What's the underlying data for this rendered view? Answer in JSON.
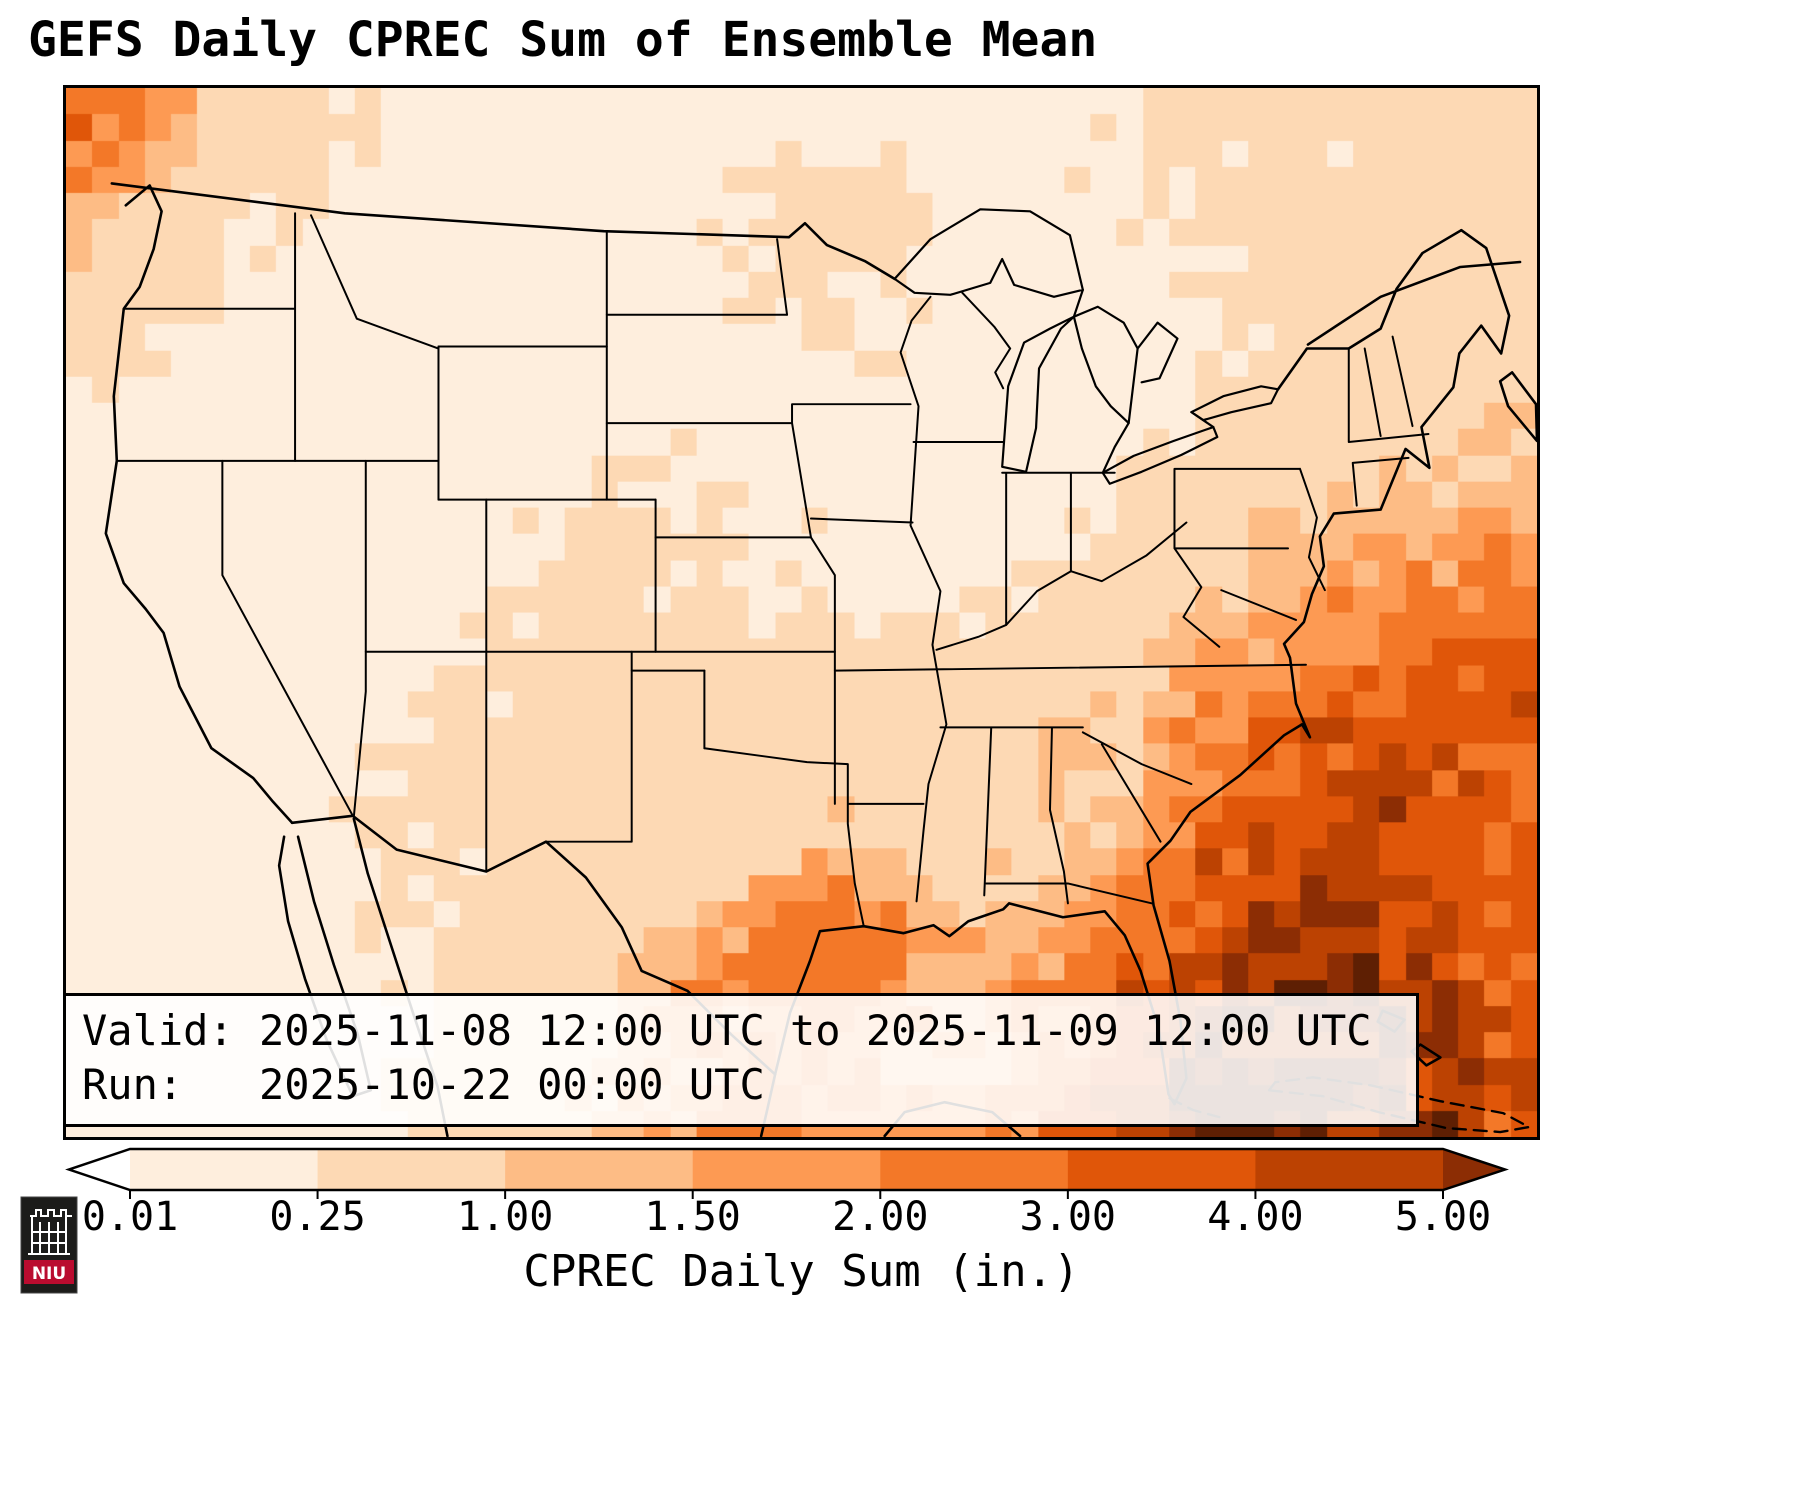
{
  "title": "GEFS Daily CPREC Sum of Ensemble Mean",
  "annotation": {
    "line1": "Valid: 2025-11-08 12:00 UTC to 2025-11-09 12:00 UTC",
    "line2": "Run:   2025-10-22 00:00 UTC"
  },
  "colorbar": {
    "label": "CPREC Daily Sum (in.)",
    "ticks": [
      "0.01",
      "0.25",
      "1.00",
      "1.50",
      "2.00",
      "3.00",
      "4.00",
      "5.00"
    ],
    "under_color": "#ffffff",
    "segment_colors": [
      "#feeedd",
      "#fdd9b4",
      "#fdbc85",
      "#fd9a53",
      "#f37828",
      "#e05609",
      "#bc4202"
    ],
    "over_color": "#8c2d04",
    "extreme_color": "#5e1f03",
    "extend": "both"
  },
  "logo": {
    "label": "NIU",
    "shield_color": "#1c1c1a",
    "band_color": "#ba0c2f"
  },
  "chart_data": {
    "type": "heatmap",
    "title": "GEFS Daily CPREC Sum of Ensemble Mean",
    "colorbar_label": "CPREC Daily Sum (in.)",
    "units": "inches",
    "region": "CONUS and adjacent oceans",
    "valid": "2025-11-08 12:00 UTC to 2025-11-09 12:00 UTC",
    "run": "2025-10-22 00:00 UTC",
    "levels": [
      0.01,
      0.25,
      1.0,
      1.5,
      2.0,
      3.0,
      4.0,
      5.0
    ],
    "legend_position": "bottom",
    "grid_rows": 16,
    "grid_cols": 24,
    "grid_orientation": "row0 = north (approx 52N) to row15 = south (approx 22N); col0 = west (approx 127W) to col23 = east (approx 65W)",
    "grid_inches": [
      [
        2.8,
        1.6,
        0.8,
        0.4,
        0.3,
        0.2,
        0.15,
        0.1,
        0.1,
        0.12,
        0.15,
        0.2,
        0.2,
        0.2,
        0.15,
        0.2,
        0.2,
        0.25,
        0.3,
        0.3,
        0.3,
        0.35,
        0.4,
        0.45
      ],
      [
        1.8,
        1.0,
        0.5,
        0.3,
        0.2,
        0.15,
        0.1,
        0.08,
        0.08,
        0.1,
        0.2,
        0.3,
        0.3,
        0.25,
        0.2,
        0.15,
        0.2,
        0.25,
        0.3,
        0.3,
        0.3,
        0.35,
        0.45,
        0.5
      ],
      [
        0.9,
        0.5,
        0.3,
        0.2,
        0.12,
        0.1,
        0.08,
        0.08,
        0.1,
        0.12,
        0.2,
        0.3,
        0.35,
        0.3,
        0.2,
        0.15,
        0.15,
        0.2,
        0.25,
        0.3,
        0.35,
        0.4,
        0.45,
        0.55
      ],
      [
        0.5,
        0.3,
        0.2,
        0.1,
        0.08,
        0.05,
        0.05,
        0.08,
        0.1,
        0.15,
        0.2,
        0.25,
        0.3,
        0.25,
        0.2,
        0.15,
        0.15,
        0.15,
        0.2,
        0.3,
        0.4,
        0.45,
        0.55,
        0.65
      ],
      [
        0.3,
        0.2,
        0.1,
        0.05,
        0.05,
        0.05,
        0.08,
        0.1,
        0.15,
        0.15,
        0.15,
        0.2,
        0.2,
        0.2,
        0.15,
        0.15,
        0.15,
        0.15,
        0.2,
        0.35,
        0.5,
        0.6,
        0.7,
        0.8
      ],
      [
        0.2,
        0.15,
        0.08,
        0.05,
        0.05,
        0.08,
        0.1,
        0.15,
        0.2,
        0.25,
        0.2,
        0.15,
        0.15,
        0.15,
        0.15,
        0.15,
        0.15,
        0.2,
        0.3,
        0.5,
        0.7,
        0.8,
        0.9,
        1.0
      ],
      [
        0.15,
        0.1,
        0.08,
        0.05,
        0.08,
        0.1,
        0.15,
        0.2,
        0.3,
        0.3,
        0.25,
        0.2,
        0.2,
        0.15,
        0.15,
        0.15,
        0.2,
        0.3,
        0.5,
        0.8,
        1.0,
        1.2,
        1.3,
        1.5
      ],
      [
        0.1,
        0.08,
        0.05,
        0.05,
        0.1,
        0.15,
        0.2,
        0.25,
        0.3,
        0.3,
        0.3,
        0.25,
        0.25,
        0.2,
        0.2,
        0.25,
        0.3,
        0.5,
        0.8,
        1.2,
        1.5,
        1.8,
        2.0,
        2.2
      ],
      [
        0.08,
        0.05,
        0.05,
        0.08,
        0.1,
        0.2,
        0.25,
        0.3,
        0.35,
        0.3,
        0.3,
        0.3,
        0.3,
        0.3,
        0.3,
        0.35,
        0.4,
        0.7,
        1.2,
        1.8,
        2.2,
        2.5,
        2.8,
        3.0
      ],
      [
        0.05,
        0.05,
        0.08,
        0.1,
        0.15,
        0.25,
        0.3,
        0.35,
        0.4,
        0.4,
        0.4,
        0.45,
        0.5,
        0.5,
        0.55,
        0.7,
        1.1,
        0.8,
        1.8,
        2.5,
        3.0,
        3.2,
        3.5,
        3.8
      ],
      [
        0.05,
        0.05,
        0.1,
        0.15,
        0.2,
        0.3,
        0.35,
        0.4,
        0.5,
        0.55,
        0.6,
        0.65,
        0.7,
        0.6,
        0.6,
        0.9,
        1.3,
        1.0,
        2.5,
        3.2,
        3.8,
        4.0,
        3.8,
        3.5
      ],
      [
        0.05,
        0.08,
        0.1,
        0.15,
        0.2,
        0.25,
        0.3,
        0.35,
        0.4,
        0.5,
        0.6,
        0.8,
        1.0,
        0.8,
        0.7,
        0.8,
        0.9,
        1.4,
        3.0,
        3.8,
        4.2,
        4.0,
        3.5,
        3.0
      ],
      [
        0.04,
        0.06,
        0.1,
        0.15,
        0.2,
        0.25,
        0.3,
        0.4,
        0.6,
        0.8,
        1.2,
        1.8,
        2.2,
        1.8,
        1.2,
        1.0,
        1.5,
        2.5,
        3.8,
        4.5,
        5.0,
        4.5,
        3.8,
        3.2
      ],
      [
        0.04,
        0.06,
        0.1,
        0.15,
        0.2,
        0.25,
        0.35,
        0.5,
        0.8,
        1.2,
        1.8,
        2.4,
        2.6,
        2.0,
        1.5,
        1.4,
        2.0,
        3.2,
        4.5,
        5.2,
        5.6,
        5.0,
        4.2,
        3.5
      ],
      [
        0.03,
        0.05,
        0.08,
        0.1,
        0.15,
        0.2,
        0.3,
        0.5,
        1.0,
        1.4,
        1.8,
        2.2,
        2.2,
        1.8,
        1.6,
        1.8,
        2.6,
        4.0,
        5.2,
        6.0,
        6.0,
        5.2,
        4.5,
        3.8
      ],
      [
        0.03,
        0.05,
        0.08,
        0.12,
        0.18,
        0.25,
        0.4,
        0.7,
        1.2,
        1.6,
        2.0,
        2.2,
        2.0,
        1.8,
        1.8,
        2.2,
        3.2,
        4.8,
        5.8,
        6.5,
        6.2,
        5.5,
        4.8,
        4.0
      ]
    ]
  }
}
